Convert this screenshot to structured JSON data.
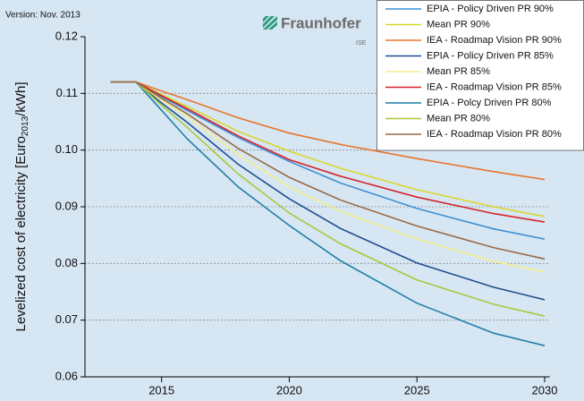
{
  "chart_data": {
    "type": "line",
    "version": "Version: Nov. 2013",
    "logo": "Fraunhofer",
    "logo_sub": "ISE",
    "y_label": {
      "main": "Levelized cost of electricity [Euro",
      "sub": "2013",
      "end": "/kWh]"
    },
    "x": [
      2013,
      2014,
      2015,
      2016,
      2018,
      2020,
      2022,
      2025,
      2028,
      2030
    ],
    "xlim": [
      2012,
      2030.2
    ],
    "xticks": [
      2015,
      2020,
      2025,
      2030
    ],
    "ylim": [
      0.06,
      0.12
    ],
    "yticks": [
      0.06,
      0.07,
      0.08,
      0.09,
      {
        "value": 0.1,
        "label": "0.10"
      },
      0.11,
      0.12
    ],
    "grid": true,
    "legend_position": "upper right",
    "series": [
      {
        "name": "EPIA - Policy Driven PR 90%",
        "color": "#3d8fd1",
        "values": [
          0.112,
          0.112,
          0.1094,
          0.107,
          0.1022,
          0.098,
          0.0942,
          0.0897,
          0.0861,
          0.0843
        ]
      },
      {
        "name": "Mean PR 90%",
        "color": "#d8d82a",
        "values": [
          0.112,
          0.112,
          0.1098,
          0.1077,
          0.1033,
          0.0998,
          0.0968,
          0.093,
          0.09,
          0.0883
        ]
      },
      {
        "name": "IEA - Roadmap Vision PR 90%",
        "color": "#e8762d",
        "values": [
          0.112,
          0.112,
          0.1104,
          0.1089,
          0.1057,
          0.103,
          0.101,
          0.0985,
          0.0962,
          0.0948
        ]
      },
      {
        "name": "EPIA - Policy Driven PR 85%",
        "color": "#1e4f91",
        "values": [
          0.112,
          0.112,
          0.1083,
          0.1049,
          0.0975,
          0.0914,
          0.0862,
          0.0801,
          0.0758,
          0.0736
        ]
      },
      {
        "name": "Mean PR 85%",
        "color": "#f4ef8c",
        "values": [
          0.112,
          0.112,
          0.1088,
          0.1059,
          0.0992,
          0.0935,
          0.0892,
          0.0843,
          0.0804,
          0.0785
        ]
      },
      {
        "name": "IEA - Roadmap Vision PR 85%",
        "color": "#d4242a",
        "values": [
          0.112,
          0.112,
          0.1096,
          0.1073,
          0.1025,
          0.0983,
          0.0954,
          0.0917,
          0.0888,
          0.0873
        ]
      },
      {
        "name": "EPIA - Polcy Driven PR 80%",
        "color": "#1f7ea8",
        "values": [
          0.112,
          0.112,
          0.107,
          0.102,
          0.0935,
          0.0867,
          0.0805,
          0.073,
          0.0677,
          0.0655
        ]
      },
      {
        "name": "Mean PR 80%",
        "color": "#a8c83a",
        "values": [
          0.112,
          0.112,
          0.1079,
          0.104,
          0.0958,
          0.0889,
          0.0835,
          0.0771,
          0.0728,
          0.0707
        ]
      },
      {
        "name": "IEA - Roadmap Vision PR 80%",
        "color": "#9b6a45",
        "values": [
          0.112,
          0.112,
          0.1091,
          0.1064,
          0.1003,
          0.0952,
          0.0912,
          0.0866,
          0.0828,
          0.0808
        ]
      }
    ]
  }
}
